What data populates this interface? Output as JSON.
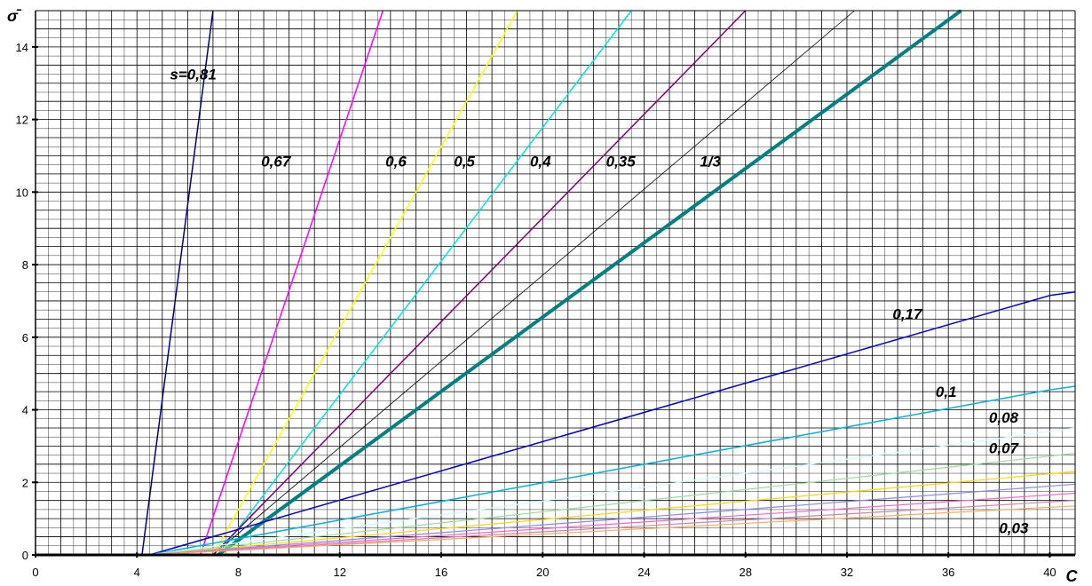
{
  "chart_data": {
    "type": "line",
    "title": "",
    "xlabel": "C",
    "ylabel": "σ̄",
    "xlim": [
      0,
      41
    ],
    "ylim": [
      0,
      15
    ],
    "grid": true,
    "x_ticks": [
      "0",
      "4",
      "8",
      "12",
      "16",
      "20",
      "24",
      "28",
      "32",
      "36",
      "40"
    ],
    "y_ticks": [
      "0",
      "2",
      "4",
      "6",
      "8",
      "10",
      "12",
      "14"
    ],
    "series": [
      {
        "name": "s=0,81",
        "color": "#000080",
        "width": 1.5,
        "x": [
          4.2,
          7.0
        ],
        "y": [
          0,
          15
        ]
      },
      {
        "name": "0,67",
        "color": "#ff00ff",
        "width": 1.5,
        "x": [
          6.5,
          13.7
        ],
        "y": [
          0,
          15
        ]
      },
      {
        "name": "0,6",
        "color": "#ffff00",
        "width": 1.5,
        "x": [
          7.0,
          19.0
        ],
        "y": [
          0,
          15
        ]
      },
      {
        "name": "0,5",
        "color": "#00e5e5",
        "width": 1.5,
        "x": [
          7.2,
          23.5
        ],
        "y": [
          0,
          15
        ]
      },
      {
        "name": "0,4",
        "color": "#800080",
        "width": 1.5,
        "x": [
          7.0,
          28.0
        ],
        "y": [
          0,
          15
        ]
      },
      {
        "name": "0,35",
        "color": "#000000",
        "width": 0.8,
        "x": [
          7.0,
          32.3
        ],
        "y": [
          0,
          15
        ]
      },
      {
        "name": "1/3",
        "color": "#008080",
        "width": 4,
        "x": [
          7.2,
          36.5
        ],
        "y": [
          0,
          15
        ]
      },
      {
        "name": "0,17",
        "color": "#0000cc",
        "width": 1.5,
        "x": [
          4.5,
          40.0,
          41.0
        ],
        "y": [
          0,
          7.15,
          7.25
        ]
      },
      {
        "name": "0,1",
        "color": "#00b0e0",
        "width": 1.5,
        "x": [
          4.5,
          40.0,
          41.0
        ],
        "y": [
          0,
          4.55,
          4.65
        ]
      },
      {
        "name": "0,08",
        "color": "#ccffff",
        "width": 1.2,
        "x": [
          4.5,
          41.0
        ],
        "y": [
          0,
          3.5
        ]
      },
      {
        "name": "0,07",
        "color": "#99dd99",
        "width": 1.2,
        "x": [
          4.5,
          41.0
        ],
        "y": [
          0,
          2.8
        ]
      },
      {
        "name": "",
        "color": "#ffd700",
        "width": 1.2,
        "x": [
          4.5,
          41.0
        ],
        "y": [
          0,
          2.3
        ]
      },
      {
        "name": "",
        "color": "#8888ff",
        "width": 1.2,
        "x": [
          4.5,
          41.0
        ],
        "y": [
          0,
          1.95
        ]
      },
      {
        "name": "",
        "color": "#ff66cc",
        "width": 1.2,
        "x": [
          4.5,
          41.0
        ],
        "y": [
          0,
          1.7
        ]
      },
      {
        "name": "",
        "color": "#cc88aa",
        "width": 1.2,
        "x": [
          4.5,
          41.0
        ],
        "y": [
          0,
          1.5
        ]
      },
      {
        "name": "0,03",
        "color": "#ffaa66",
        "width": 1.2,
        "x": [
          4.5,
          41.0
        ],
        "y": [
          0,
          1.35
        ]
      }
    ],
    "labels": [
      {
        "text": "s=0,81",
        "x": 5.3,
        "y": 13.1
      },
      {
        "text": "0,67",
        "x": 8.9,
        "y": 10.7
      },
      {
        "text": "0,6",
        "x": 13.8,
        "y": 10.7
      },
      {
        "text": "0,5",
        "x": 16.5,
        "y": 10.7
      },
      {
        "text": "0,4",
        "x": 19.5,
        "y": 10.7
      },
      {
        "text": "0,35",
        "x": 22.5,
        "y": 10.7
      },
      {
        "text": "1/3",
        "x": 26.2,
        "y": 10.7
      },
      {
        "text": "0,17",
        "x": 33.8,
        "y": 6.5
      },
      {
        "text": "0,1",
        "x": 35.5,
        "y": 4.35
      },
      {
        "text": "0,08",
        "x": 37.6,
        "y": 3.65
      },
      {
        "text": "0,07",
        "x": 37.6,
        "y": 2.8
      },
      {
        "text": "0,03",
        "x": 38.0,
        "y": 0.6
      }
    ]
  }
}
